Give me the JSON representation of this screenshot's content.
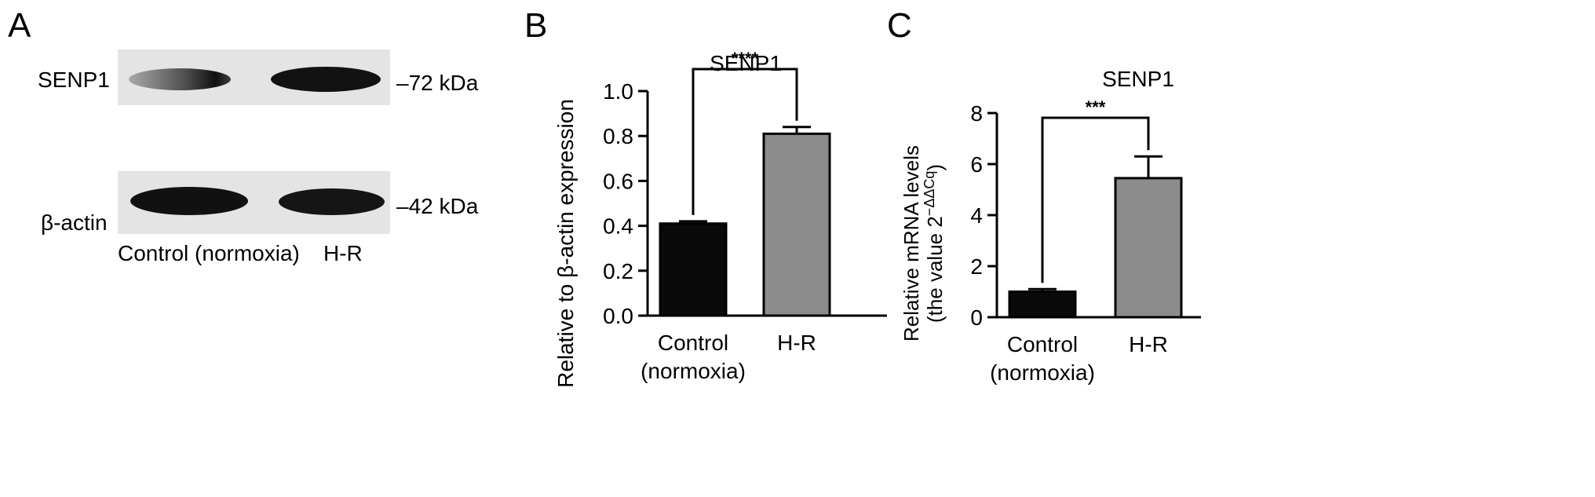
{
  "panels": {
    "a": {
      "letter": "A",
      "rows": [
        {
          "label": "SENP1",
          "kda": "–72 kDa"
        },
        {
          "label": "β-actin",
          "kda": "–42 kDa"
        }
      ],
      "lanes": [
        "Control (normoxia)",
        "H-R"
      ]
    },
    "b": {
      "letter": "B"
    },
    "c": {
      "letter": "C"
    }
  },
  "chart_data": [
    {
      "type": "bar",
      "title": "SENP1",
      "ylabel": "Relative to β-actin expression",
      "categories": [
        [
          "Control",
          "(normoxia)"
        ],
        [
          "H-R"
        ]
      ],
      "values": [
        0.41,
        0.81
      ],
      "errors": [
        0.01,
        0.03
      ],
      "ylim": [
        0.0,
        1.0
      ],
      "yticks": [
        "0.0",
        "0.2",
        "0.4",
        "0.6",
        "0.8",
        "1.0"
      ],
      "significance": "****",
      "colors": [
        "#0a0a0a",
        "#8c8c8c"
      ]
    },
    {
      "type": "bar",
      "title": "SENP1",
      "ylabel_line1": "Relative mRNA levels",
      "ylabel_line2": "(the value 2",
      "ylabel_sup": "−ΔΔCq",
      "ylabel_close": ")",
      "categories": [
        [
          "Control",
          "(normoxia)"
        ],
        [
          "H-R"
        ]
      ],
      "values": [
        1.0,
        5.45
      ],
      "errors": [
        0.1,
        0.85
      ],
      "ylim": [
        0,
        8
      ],
      "yticks": [
        "0",
        "2",
        "4",
        "6",
        "8"
      ],
      "significance": "***",
      "colors": [
        "#0a0a0a",
        "#8c8c8c"
      ]
    }
  ]
}
